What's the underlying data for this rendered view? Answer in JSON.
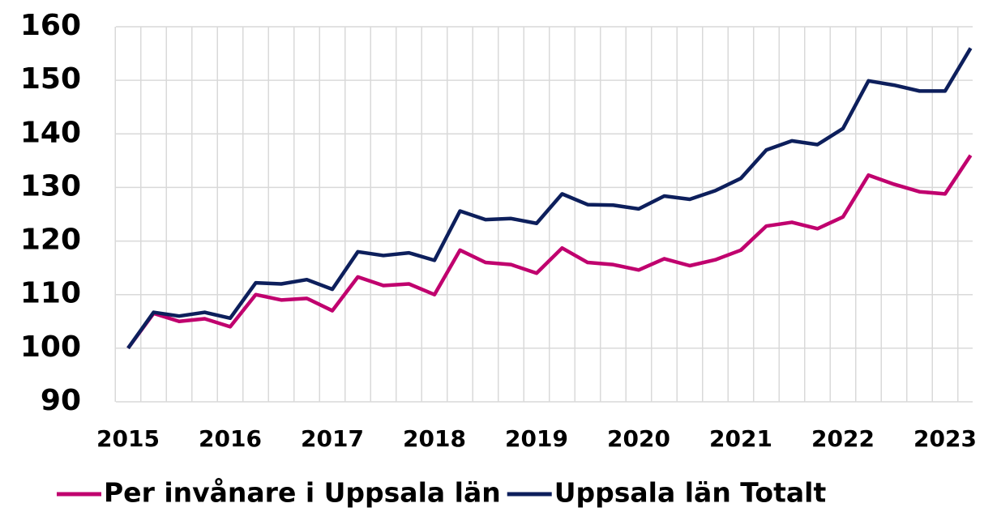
{
  "chart_data": {
    "type": "line",
    "categories": [
      "2015",
      null,
      null,
      null,
      "2016",
      null,
      null,
      null,
      "2017",
      null,
      null,
      null,
      "2018",
      null,
      null,
      null,
      "2019",
      null,
      null,
      null,
      "2020",
      null,
      null,
      null,
      "2021",
      null,
      null,
      null,
      "2022",
      null,
      null,
      null,
      "2023",
      null
    ],
    "series": [
      {
        "name": "Per invånare i Uppsala län",
        "color": "#c0006e",
        "values": [
          100,
          106.5,
          105,
          105.5,
          104,
          110,
          109,
          109.3,
          107,
          113.3,
          111.7,
          112,
          110,
          118.3,
          116,
          115.6,
          114,
          118.7,
          116,
          115.6,
          114.6,
          116.7,
          115.4,
          116.5,
          118.3,
          122.8,
          123.5,
          122.3,
          124.5,
          132.3,
          130.6,
          129.2,
          128.8,
          136
        ]
      },
      {
        "name": "Uppsala län Totalt",
        "color": "#0d1f5c",
        "values": [
          100,
          106.7,
          106,
          106.7,
          105.6,
          112.2,
          112,
          112.8,
          111,
          118,
          117.3,
          117.8,
          116.4,
          125.6,
          124,
          124.2,
          123.3,
          128.8,
          126.8,
          126.7,
          126,
          128.4,
          127.8,
          129.4,
          131.7,
          137,
          138.7,
          138,
          141,
          149.9,
          149.1,
          148,
          148,
          156
        ]
      }
    ],
    "ylim": [
      90,
      160
    ],
    "yticks": [
      90,
      100,
      110,
      120,
      130,
      140,
      150,
      160
    ],
    "grid": true,
    "legend": "bottom"
  }
}
